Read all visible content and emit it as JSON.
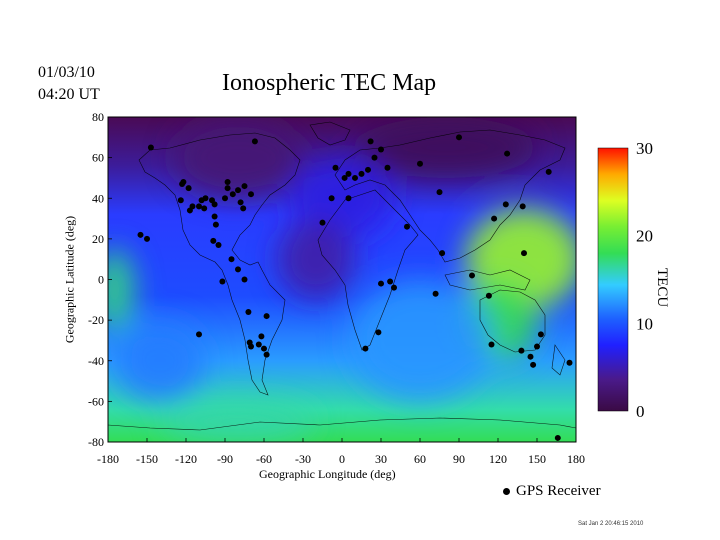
{
  "header": {
    "date": "01/03/10",
    "time": "04:20 UT",
    "title": "Ionospheric TEC Map"
  },
  "footer": {
    "legend_label": "GPS Receiver",
    "timestamp": "Sat Jan  2 20:46:15 2010"
  },
  "colors": {
    "low": "#4a0a55",
    "blue": "#1e3cff",
    "cyan": "#33ccff",
    "green": "#33dd44",
    "yellow": "#ccff33",
    "red": "#ff2200",
    "markers": "#000000"
  },
  "chart_data": {
    "type": "heatmap",
    "xlabel": "Geographic Longitude (deg)",
    "ylabel": "Geographic Latitude (deg)",
    "xlim": [
      -180,
      180
    ],
    "ylim": [
      -80,
      80
    ],
    "xticks": [
      -180,
      -150,
      -120,
      -90,
      -60,
      -30,
      0,
      30,
      60,
      90,
      120,
      150,
      180
    ],
    "yticks": [
      80,
      60,
      40,
      20,
      0,
      -20,
      -40,
      -60,
      -80
    ],
    "colorbar": {
      "label": "TECU",
      "range": [
        0,
        30
      ],
      "ticks": [
        0,
        10,
        20,
        30
      ]
    },
    "tec_regions": [
      {
        "lon": 140,
        "lat": 10,
        "rx": 45,
        "ry": 25,
        "tec": 22
      },
      {
        "lon": 120,
        "lat": -20,
        "rx": 30,
        "ry": 20,
        "tec": 18
      },
      {
        "lon": -175,
        "lat": -5,
        "rx": 15,
        "ry": 20,
        "tec": 17
      },
      {
        "lon": -80,
        "lat": -70,
        "rx": 60,
        "ry": 10,
        "tec": 16
      },
      {
        "lon": 60,
        "lat": -30,
        "rx": 55,
        "ry": 30,
        "tec": 12
      },
      {
        "lon": -140,
        "lat": -40,
        "rx": 35,
        "ry": 20,
        "tec": 11
      },
      {
        "lon": 0,
        "lat": 40,
        "rx": 40,
        "ry": 20,
        "tec": 6
      },
      {
        "lon": -80,
        "lat": 60,
        "rx": 50,
        "ry": 20,
        "tec": 2
      },
      {
        "lon": 80,
        "lat": 65,
        "rx": 70,
        "ry": 15,
        "tec": 1
      },
      {
        "lon": -20,
        "lat": 10,
        "rx": 30,
        "ry": 20,
        "tec": 4
      }
    ],
    "gps_receivers": [
      [
        -147,
        65
      ],
      [
        -155,
        22
      ],
      [
        -150,
        20
      ],
      [
        -122,
        48
      ],
      [
        -123,
        47
      ],
      [
        -118,
        45
      ],
      [
        -124,
        39
      ],
      [
        -117,
        34
      ],
      [
        -115,
        36
      ],
      [
        -108,
        39
      ],
      [
        -105,
        40
      ],
      [
        -106,
        35
      ],
      [
        -100,
        39
      ],
      [
        -98,
        37
      ],
      [
        -90,
        40
      ],
      [
        -88,
        48
      ],
      [
        -88,
        45
      ],
      [
        -84,
        42
      ],
      [
        -80,
        44
      ],
      [
        -75,
        46
      ],
      [
        -70,
        42
      ],
      [
        -78,
        38
      ],
      [
        -76,
        35
      ],
      [
        -67,
        68
      ],
      [
        -110,
        36
      ],
      [
        -98,
        31
      ],
      [
        -97,
        27
      ],
      [
        -99,
        19
      ],
      [
        -95,
        17
      ],
      [
        -85,
        10
      ],
      [
        -80,
        5
      ],
      [
        -75,
        0
      ],
      [
        -92,
        -1
      ],
      [
        -72,
        -16
      ],
      [
        -58,
        -18
      ],
      [
        -110,
        -27
      ],
      [
        -70,
        -33
      ],
      [
        -71,
        -31
      ],
      [
        -64,
        -32
      ],
      [
        -60,
        -34
      ],
      [
        -58,
        -37
      ],
      [
        -62,
        -28
      ],
      [
        -8,
        40
      ],
      [
        5,
        40
      ],
      [
        -15,
        28
      ],
      [
        10,
        50
      ],
      [
        15,
        52
      ],
      [
        20,
        54
      ],
      [
        25,
        60
      ],
      [
        30,
        64
      ],
      [
        35,
        55
      ],
      [
        60,
        57
      ],
      [
        22,
        68
      ],
      [
        5,
        52
      ],
      [
        2,
        50
      ],
      [
        -5,
        55
      ],
      [
        75,
        43
      ],
      [
        50,
        26
      ],
      [
        77,
        13
      ],
      [
        72,
        -7
      ],
      [
        100,
        2
      ],
      [
        113,
        -8
      ],
      [
        117,
        30
      ],
      [
        126,
        37
      ],
      [
        139,
        36
      ],
      [
        140,
        13
      ],
      [
        127,
        62
      ],
      [
        159,
        53
      ],
      [
        90,
        70
      ],
      [
        115,
        -32
      ],
      [
        138,
        -35
      ],
      [
        145,
        -38
      ],
      [
        147,
        -42
      ],
      [
        150,
        -33
      ],
      [
        153,
        -27
      ],
      [
        175,
        -41
      ],
      [
        166,
        -78
      ],
      [
        28,
        -26
      ],
      [
        18,
        -34
      ],
      [
        30,
        -2
      ],
      [
        37,
        -1
      ],
      [
        40,
        -4
      ]
    ]
  }
}
